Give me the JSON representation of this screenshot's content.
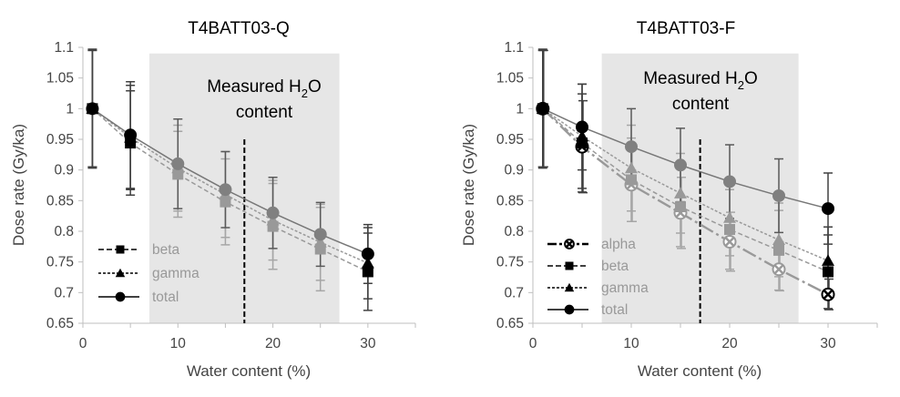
{
  "chart_data": [
    {
      "type": "line",
      "title": "T4BATT03-Q",
      "xlabel": "Water content (%)",
      "ylabel": "Dose rate (Gy/ka)",
      "xlim": [
        0,
        35
      ],
      "ylim": [
        0.65,
        1.1
      ],
      "x_ticks": [
        "0",
        "10",
        "20",
        "30"
      ],
      "y_ticks": [
        "0.65",
        "0.7",
        "0.75",
        "0.8",
        "0.85",
        "0.9",
        "0.95",
        "1",
        "1.05",
        "1.1"
      ],
      "shaded_range": [
        7,
        27
      ],
      "measured_line_x": 17,
      "annotation": {
        "line1_pre": "Measured H",
        "line1_sub": "2",
        "line1_post": "O",
        "line2": "content"
      },
      "x": [
        1,
        5,
        10,
        15,
        20,
        25,
        30
      ],
      "series": [
        {
          "name": "beta",
          "marker": "square",
          "values": [
            1.0,
            0.944,
            0.893,
            0.848,
            0.808,
            0.771,
            0.734
          ],
          "errors": [
            0.095,
            0.085,
            0.07,
            0.07,
            0.07,
            0.068,
            0.063
          ]
        },
        {
          "name": "gamma",
          "marker": "triangle",
          "values": [
            1.0,
            0.953,
            0.903,
            0.86,
            0.818,
            0.782,
            0.748
          ],
          "errors": [
            0.095,
            0.085,
            0.07,
            0.07,
            0.065,
            0.062,
            0.058
          ]
        },
        {
          "name": "total",
          "marker": "circle",
          "values": [
            1.0,
            0.957,
            0.91,
            0.868,
            0.83,
            0.795,
            0.763
          ],
          "errors": [
            0.097,
            0.087,
            0.073,
            0.062,
            0.058,
            0.052,
            0.048
          ]
        }
      ]
    },
    {
      "type": "line",
      "title": "T4BATT03-F",
      "xlabel": "Water content (%)",
      "ylabel": "Dose rate (Gy/ka)",
      "xlim": [
        0,
        35
      ],
      "ylim": [
        0.65,
        1.1
      ],
      "x_ticks": [
        "0",
        "10",
        "20",
        "30"
      ],
      "y_ticks": [
        "0.65",
        "0.7",
        "0.75",
        "0.8",
        "0.85",
        "0.9",
        "0.95",
        "1",
        "1.05",
        "1.1"
      ],
      "shaded_range": [
        7,
        27
      ],
      "measured_line_x": 17,
      "annotation": {
        "line1_pre": "Measured H",
        "line1_sub": "2",
        "line1_post": "O",
        "line2": "content"
      },
      "x": [
        1,
        5,
        10,
        15,
        20,
        25,
        30
      ],
      "series": [
        {
          "name": "alpha",
          "marker": "xcircle",
          "values": [
            1.0,
            0.938,
            0.876,
            0.83,
            0.783,
            0.738,
            0.697
          ],
          "errors": [
            0.095,
            0.075,
            0.06,
            0.058,
            0.048,
            0.035,
            0.025
          ]
        },
        {
          "name": "beta",
          "marker": "square",
          "values": [
            1.0,
            0.944,
            0.884,
            0.84,
            0.803,
            0.769,
            0.734
          ],
          "errors": [
            0.095,
            0.08,
            0.068,
            0.065,
            0.065,
            0.065,
            0.06
          ]
        },
        {
          "name": "gamma",
          "marker": "triangle",
          "values": [
            1.0,
            0.955,
            0.903,
            0.862,
            0.822,
            0.786,
            0.752
          ],
          "errors": [
            0.095,
            0.085,
            0.07,
            0.065,
            0.062,
            0.06,
            0.055
          ]
        },
        {
          "name": "total",
          "marker": "circle",
          "values": [
            1.0,
            0.97,
            0.938,
            0.908,
            0.881,
            0.858,
            0.837
          ],
          "errors": [
            0.097,
            0.07,
            0.062,
            0.06,
            0.06,
            0.06,
            0.058
          ]
        }
      ]
    }
  ]
}
